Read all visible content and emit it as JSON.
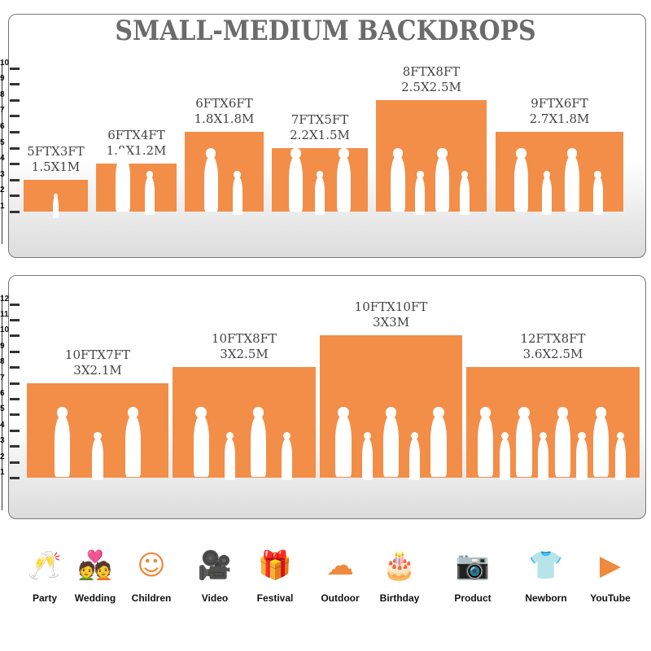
{
  "title": "SMALL-MEDIUM BACKDROPS",
  "colors": {
    "backdrop": "#f28e48",
    "text": "#444444",
    "icon": "#ee8a3e"
  },
  "panels": [
    {
      "scale_max": 10,
      "sizes": [
        {
          "ft": "5FTX3FT",
          "m": "1.5X1M",
          "height_ft": 3,
          "people": 1
        },
        {
          "ft": "6FTX4FT",
          "m": "1.8X1.2M",
          "height_ft": 4,
          "people": 2
        },
        {
          "ft": "6FTX6FT",
          "m": "1.8X1.8M",
          "height_ft": 6,
          "people": 2
        },
        {
          "ft": "7FTX5FT",
          "m": "2.2X1.5M",
          "height_ft": 5,
          "people": 3
        },
        {
          "ft": "8FTX8FT",
          "m": "2.5X2.5M",
          "height_ft": 8,
          "people": 4
        },
        {
          "ft": "9FTX6FT",
          "m": "2.7X1.8M",
          "height_ft": 6,
          "people": 4
        }
      ]
    },
    {
      "scale_max": 12,
      "sizes": [
        {
          "ft": "10FTX7FT",
          "m": "3X2.1M",
          "height_ft": 7,
          "people": 3
        },
        {
          "ft": "10FTX8FT",
          "m": "3X2.5M",
          "height_ft": 8,
          "people": 4
        },
        {
          "ft": "10FTX10FT",
          "m": "3X3M",
          "height_ft": 10,
          "people": 5
        },
        {
          "ft": "12FTX8FT",
          "m": "3.6X2.5M",
          "height_ft": 8,
          "people": 8
        }
      ]
    }
  ],
  "uses": [
    {
      "label": "Party",
      "icon": "champagne-glasses-icon",
      "glyph": "🥂"
    },
    {
      "label": "Wedding",
      "icon": "wedding-couple-icon",
      "glyph": "💑"
    },
    {
      "label": "Children",
      "icon": "children-faces-icon",
      "glyph": "☺☺"
    },
    {
      "label": "Video",
      "icon": "video-camera-icon",
      "glyph": "🎥"
    },
    {
      "label": "Festival",
      "icon": "gift-box-icon",
      "glyph": "🎁"
    },
    {
      "label": "Outdoor",
      "icon": "cloud-icon",
      "glyph": "☁"
    },
    {
      "label": "Birthday",
      "icon": "birthday-cake-icon",
      "glyph": "🎂"
    },
    {
      "label": "Product",
      "icon": "camera-icon",
      "glyph": "📷"
    },
    {
      "label": "Newborn",
      "icon": "baby-onesie-icon",
      "glyph": "👕"
    },
    {
      "label": "YouTube",
      "icon": "play-button-icon",
      "glyph": "▶"
    }
  ]
}
